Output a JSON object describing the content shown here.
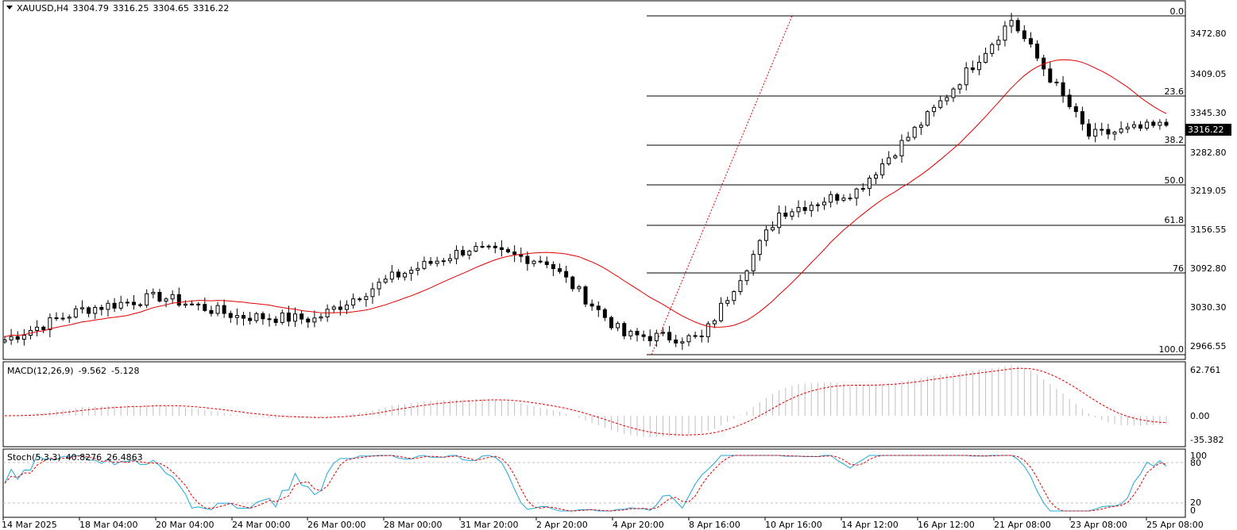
{
  "main": {
    "symbol_timeframe": "XAUUSD,H4",
    "ohlc": [
      "3304.79",
      "3316.25",
      "3304.65",
      "3316.22"
    ],
    "current_price": "3316.22",
    "y_axis": [
      "3472.80",
      "3409.05",
      "3345.30",
      "3282.80",
      "3219.05",
      "3156.55",
      "3092.80",
      "3030.30",
      "2966.55"
    ],
    "fibonacci": [
      "0.0",
      "23.6",
      "38.2",
      "50.0",
      "61.8",
      "76",
      "100.0"
    ]
  },
  "macd": {
    "title": "MACD(12,26,9)",
    "values": [
      "-9.562",
      "-5.128"
    ],
    "y_axis": [
      "62.761",
      "0.00",
      "-35.382"
    ]
  },
  "stoch": {
    "title": "Stoch(5,3,3)",
    "values": [
      "40.8276",
      "26.4863"
    ],
    "y_axis": [
      "100",
      "80",
      "20",
      "0"
    ]
  },
  "x_axis": [
    "14 Mar 2025",
    "18 Mar 04:00",
    "20 Mar 04:00",
    "24 Mar 00:00",
    "26 Mar 00:00",
    "28 Mar 00:00",
    "31 Mar 20:00",
    "2 Apr 20:00",
    "4 Apr 20:00",
    "8 Apr 16:00",
    "10 Apr 16:00",
    "14 Apr 12:00",
    "16 Apr 12:00",
    "21 Apr 08:00",
    "23 Apr 08:00",
    "25 Apr 08:00"
  ],
  "colors": {
    "ma": "#e00000",
    "signal": "#e00000",
    "histogram": "#c0c0c0",
    "stoch_main": "#20a8d8",
    "stoch_signal": "#e00000",
    "tag_bg": "#000000"
  },
  "chart_data": {
    "type": "candlestick",
    "instrument": "XAUUSD",
    "timeframe": "H4",
    "close_path_approx": [
      [
        "14 Mar 2025",
        2983
      ],
      [
        "18 Mar 04:00",
        3030
      ],
      [
        "20 Mar 04:00",
        3050
      ],
      [
        "24 Mar 00:00",
        3020
      ],
      [
        "26 Mar 00:00",
        3015
      ],
      [
        "28 Mar 00:00",
        3080
      ],
      [
        "31 Mar 20:00",
        3125
      ],
      [
        "2 Apr 20:00",
        3105
      ],
      [
        "4 Apr 20:00",
        2990
      ],
      [
        "8 Apr 16:00",
        2985
      ],
      [
        "10 Apr 16:00",
        3180
      ],
      [
        "14 Apr 12:00",
        3215
      ],
      [
        "16 Apr 12:00",
        3340
      ],
      [
        "21 Apr 08:00",
        3480
      ],
      [
        "23 Apr 08:00",
        3300
      ],
      [
        "25 Apr 08:00",
        3316.22
      ]
    ]
  }
}
